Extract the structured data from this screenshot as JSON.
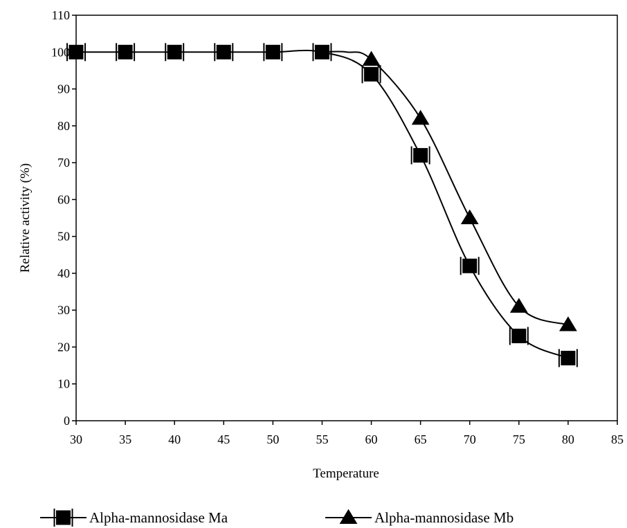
{
  "chart_data": {
    "type": "line",
    "title": "",
    "xlabel": "Temperature",
    "ylabel": "Relative activity (%)",
    "xlim": [
      30,
      85
    ],
    "ylim": [
      0,
      110
    ],
    "x_ticks": [
      30,
      35,
      40,
      45,
      50,
      55,
      60,
      65,
      70,
      75,
      80,
      85
    ],
    "y_ticks": [
      0,
      10,
      20,
      30,
      40,
      50,
      60,
      70,
      80,
      90,
      100,
      110
    ],
    "grid": false,
    "legend_position": "bottom",
    "series": [
      {
        "name": "Alpha-mannosidase Ma",
        "marker": "square",
        "x": [
          30,
          35,
          40,
          45,
          50,
          55,
          60,
          65,
          70,
          75,
          80
        ],
        "y": [
          100,
          100,
          100,
          100,
          100,
          100,
          94,
          72,
          42,
          23,
          17
        ]
      },
      {
        "name": "Alpha-mannosidase Mb",
        "marker": "triangle",
        "x": [
          60,
          65,
          70,
          75,
          80
        ],
        "y": [
          98,
          82,
          55,
          31,
          26
        ]
      }
    ],
    "colors": {
      "line": "#000000",
      "marker": "#000000",
      "frame": "#000000"
    }
  }
}
